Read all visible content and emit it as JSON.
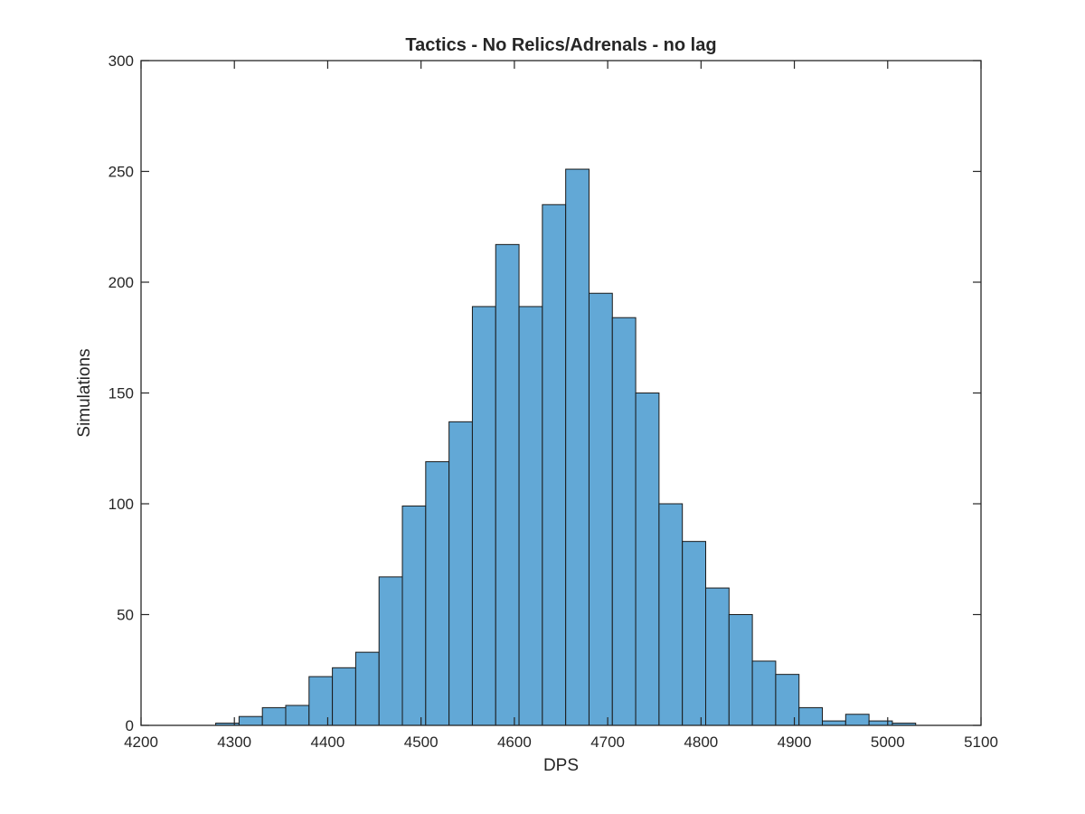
{
  "chart_data": {
    "type": "bar",
    "title": "Tactics - No Relics/Adrenals - no lag",
    "xlabel": "DPS",
    "ylabel": "Simulations",
    "xlim": [
      4200,
      5100
    ],
    "ylim": [
      0,
      300
    ],
    "xticks": [
      4200,
      4300,
      4400,
      4500,
      4600,
      4700,
      4800,
      4900,
      5000,
      5100
    ],
    "yticks": [
      0,
      50,
      100,
      150,
      200,
      250,
      300
    ],
    "grid": false,
    "legend": "none",
    "bar_color": "#62a8d6",
    "edge_color": "#1a1a1a",
    "bin_width": 25,
    "bins": [
      {
        "x0": 4280,
        "count": 1
      },
      {
        "x0": 4305,
        "count": 4
      },
      {
        "x0": 4330,
        "count": 8
      },
      {
        "x0": 4355,
        "count": 9
      },
      {
        "x0": 4380,
        "count": 22
      },
      {
        "x0": 4405,
        "count": 26
      },
      {
        "x0": 4430,
        "count": 33
      },
      {
        "x0": 4455,
        "count": 67
      },
      {
        "x0": 4480,
        "count": 99
      },
      {
        "x0": 4505,
        "count": 119
      },
      {
        "x0": 4530,
        "count": 137
      },
      {
        "x0": 4555,
        "count": 189
      },
      {
        "x0": 4580,
        "count": 217
      },
      {
        "x0": 4605,
        "count": 189
      },
      {
        "x0": 4630,
        "count": 235
      },
      {
        "x0": 4655,
        "count": 251
      },
      {
        "x0": 4680,
        "count": 195
      },
      {
        "x0": 4705,
        "count": 184
      },
      {
        "x0": 4730,
        "count": 150
      },
      {
        "x0": 4755,
        "count": 100
      },
      {
        "x0": 4780,
        "count": 83
      },
      {
        "x0": 4805,
        "count": 62
      },
      {
        "x0": 4830,
        "count": 50
      },
      {
        "x0": 4855,
        "count": 29
      },
      {
        "x0": 4880,
        "count": 23
      },
      {
        "x0": 4905,
        "count": 8
      },
      {
        "x0": 4930,
        "count": 2
      },
      {
        "x0": 4955,
        "count": 5
      },
      {
        "x0": 4980,
        "count": 2
      },
      {
        "x0": 5005,
        "count": 1
      }
    ]
  }
}
